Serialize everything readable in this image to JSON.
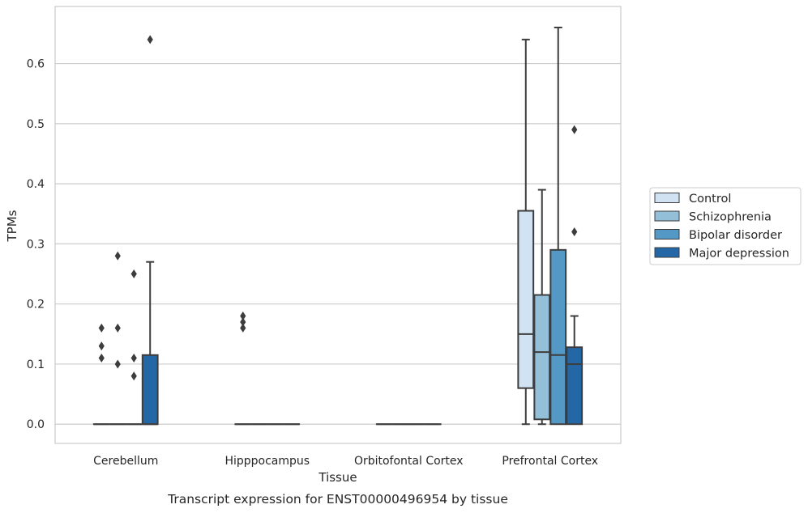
{
  "chart_data": {
    "type": "boxplot",
    "title": "Transcript expression for ENST00000496954 by tissue",
    "xlabel": "Tissue",
    "ylabel": "TPMs",
    "ylim": [
      -0.032,
      0.695
    ],
    "yticks": [
      0.0,
      0.1,
      0.2,
      0.3,
      0.4,
      0.5,
      0.6
    ],
    "ytick_labels": [
      "0.0",
      "0.1",
      "0.2",
      "0.3",
      "0.4",
      "0.5",
      "0.6"
    ],
    "grid": true,
    "legend_position": "right",
    "categories": [
      "Cerebellum",
      "Hipppocampus",
      "Orbitofontal Cortex",
      "Prefrontal Cortex"
    ],
    "series": [
      {
        "name": "Control",
        "color": "#d1e2f2",
        "boxes": [
          {
            "min": 0,
            "q1": 0,
            "median": 0,
            "q3": 0,
            "max": 0,
            "outliers": [
              0.16,
              0.13,
              0.11
            ]
          },
          {
            "min": 0,
            "q1": 0,
            "median": 0,
            "q3": 0,
            "max": 0,
            "outliers": [
              0.18,
              0.17,
              0.16
            ]
          },
          {
            "min": 0,
            "q1": 0,
            "median": 0,
            "q3": 0,
            "max": 0,
            "outliers": []
          },
          {
            "min": 0,
            "q1": 0.06,
            "median": 0.15,
            "q3": 0.355,
            "max": 0.64,
            "outliers": []
          }
        ]
      },
      {
        "name": "Schizophrenia",
        "color": "#94bfd9",
        "boxes": [
          {
            "min": 0,
            "q1": 0,
            "median": 0,
            "q3": 0,
            "max": 0,
            "outliers": [
              0.28,
              0.16,
              0.1
            ]
          },
          {
            "min": 0,
            "q1": 0,
            "median": 0,
            "q3": 0,
            "max": 0,
            "outliers": []
          },
          {
            "min": 0,
            "q1": 0,
            "median": 0,
            "q3": 0,
            "max": 0,
            "outliers": []
          },
          {
            "min": 0,
            "q1": 0.008,
            "median": 0.12,
            "q3": 0.215,
            "max": 0.39,
            "outliers": []
          }
        ]
      },
      {
        "name": "Bipolar disorder",
        "color": "#5498c5",
        "boxes": [
          {
            "min": 0,
            "q1": 0,
            "median": 0,
            "q3": 0,
            "max": 0,
            "outliers": [
              0.25,
              0.11,
              0.08
            ]
          },
          {
            "min": 0,
            "q1": 0,
            "median": 0,
            "q3": 0,
            "max": 0,
            "outliers": []
          },
          {
            "min": 0,
            "q1": 0,
            "median": 0,
            "q3": 0,
            "max": 0,
            "outliers": []
          },
          {
            "min": 0,
            "q1": 0,
            "median": 0.115,
            "q3": 0.29,
            "max": 0.66,
            "outliers": []
          }
        ]
      },
      {
        "name": "Major depression",
        "color": "#2467a7",
        "boxes": [
          {
            "min": 0,
            "q1": 0,
            "median": 0,
            "q3": 0.115,
            "max": 0.27,
            "outliers": [
              0.64
            ]
          },
          {
            "min": 0,
            "q1": 0,
            "median": 0,
            "q3": 0,
            "max": 0,
            "outliers": []
          },
          {
            "min": 0,
            "q1": 0,
            "median": 0,
            "q3": 0,
            "max": 0,
            "outliers": []
          },
          {
            "min": 0,
            "q1": 0,
            "median": 0.1,
            "q3": 0.128,
            "max": 0.18,
            "outliers": [
              0.49,
              0.32
            ]
          }
        ]
      }
    ]
  }
}
